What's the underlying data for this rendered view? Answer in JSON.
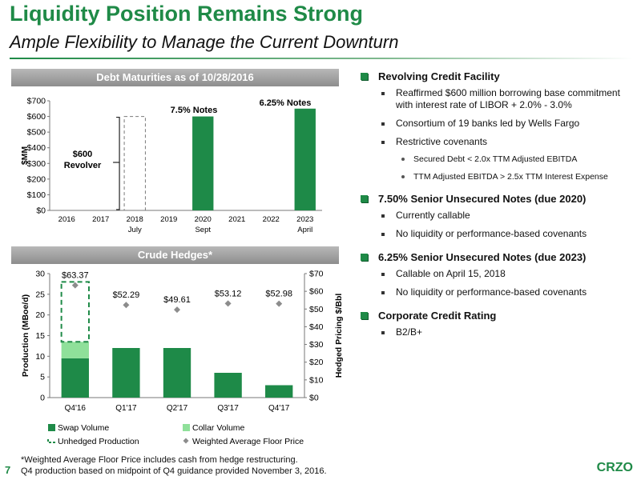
{
  "header": {
    "title": "Liquidity Position Remains Strong",
    "subtitle": "Ample Flexibility to Manage the Current Downturn"
  },
  "debt_panel": {
    "header": "Debt Maturities as of 10/28/2016",
    "annotations": {
      "revolver_line1": "$600",
      "revolver_line2": "Revolver",
      "notes_2020": "7.5% Notes",
      "notes_2023": "6.25% Notes"
    }
  },
  "hedge_panel": {
    "header": "Crude Hedges*",
    "legend": {
      "swap": "Swap Volume",
      "collar": "Collar Volume",
      "unhedged": "Unhedged Production",
      "floor": "Weighted Average Floor Price"
    }
  },
  "right_panel": {
    "sections": [
      {
        "heading": "Revolving Credit Facility",
        "items": [
          {
            "text": "Reaffirmed $600 million borrowing base commitment  with interest rate of LIBOR + 2.0% - 3.0%"
          },
          {
            "text": "Consortium of 19 banks led by Wells Fargo"
          },
          {
            "text": "Restrictive covenants",
            "subitems": [
              "Secured Debt < 2.0x TTM Adjusted EBITDA",
              "TTM Adjusted EBITDA > 2.5x TTM Interest Expense"
            ]
          }
        ]
      },
      {
        "heading": "7.50% Senior Unsecured Notes (due 2020)",
        "items": [
          {
            "text": "Currently callable"
          },
          {
            "text": "No liquidity or performance-based covenants"
          }
        ]
      },
      {
        "heading": "6.25% Senior Unsecured Notes (due 2023)",
        "items": [
          {
            "text": "Callable on April 15, 2018"
          },
          {
            "text": "No liquidity or performance-based covenants"
          }
        ]
      },
      {
        "heading": "Corporate Credit Rating",
        "items": [
          {
            "text": "B2/B+"
          }
        ]
      }
    ]
  },
  "footer": {
    "page_number": "7",
    "note_line1": "*Weighted Average Floor Price includes cash from hedge restructuring.",
    "note_line2": "Q4 production based on midpoint of Q4 guidance provided November 3, 2016.",
    "logo": "CRZO"
  },
  "colors": {
    "brand_green": "#1f8a47",
    "bar_green": "#1e8a48",
    "collar_green": "#8fe09a",
    "floor_gray": "#8c8c8c"
  },
  "chart_data": [
    {
      "type": "bar",
      "ylabel": "$MM",
      "ylim": [
        0,
        700
      ],
      "yticks": [
        0,
        100,
        200,
        300,
        400,
        500,
        600,
        700
      ],
      "ytick_labels": [
        "$0",
        "$100",
        "$200",
        "$300",
        "$400",
        "$500",
        "$600",
        "$700"
      ],
      "categories": [
        "2016",
        "2017",
        "2018",
        "2019",
        "2020",
        "2021",
        "2022",
        "2023"
      ],
      "sublabels": [
        "",
        "",
        "July",
        "",
        "Sept",
        "",
        "",
        "April"
      ],
      "series": [
        {
          "values": [
            0,
            0,
            0,
            0,
            600,
            0,
            0,
            650
          ]
        }
      ],
      "revolver": {
        "category": "2018",
        "value": 600,
        "style": "dashed"
      },
      "grid": false
    },
    {
      "type": "bar",
      "stacked": true,
      "categories": [
        "Q4'16",
        "Q1'17",
        "Q2'17",
        "Q3'17",
        "Q4'17"
      ],
      "ylabel": "Production (MBoe/d)",
      "ylim": [
        0,
        30
      ],
      "yticks": [
        0,
        5,
        10,
        15,
        20,
        25,
        30
      ],
      "y2label": "Hedged Pricing $/Bbl",
      "y2lim": [
        0,
        70
      ],
      "y2ticks": [
        0,
        10,
        20,
        30,
        40,
        50,
        60,
        70
      ],
      "y2tick_labels": [
        "$0",
        "$10",
        "$20",
        "$30",
        "$40",
        "$50",
        "$60",
        "$70"
      ],
      "series": [
        {
          "name": "Swap Volume",
          "values": [
            9.5,
            12,
            12,
            6,
            3
          ]
        },
        {
          "name": "Collar Volume",
          "values": [
            4,
            0,
            0,
            0,
            0
          ]
        },
        {
          "name": "Unhedged Production",
          "values": [
            14.5,
            0,
            0,
            0,
            0
          ]
        }
      ],
      "floor_prices": {
        "name": "Weighted Average Floor Price",
        "values": [
          63.37,
          52.29,
          49.61,
          53.12,
          52.98
        ],
        "labels": [
          "$63.37",
          "$52.29",
          "$49.61",
          "$53.12",
          "$52.98"
        ]
      },
      "legend": "bottom",
      "grid": false
    }
  ]
}
